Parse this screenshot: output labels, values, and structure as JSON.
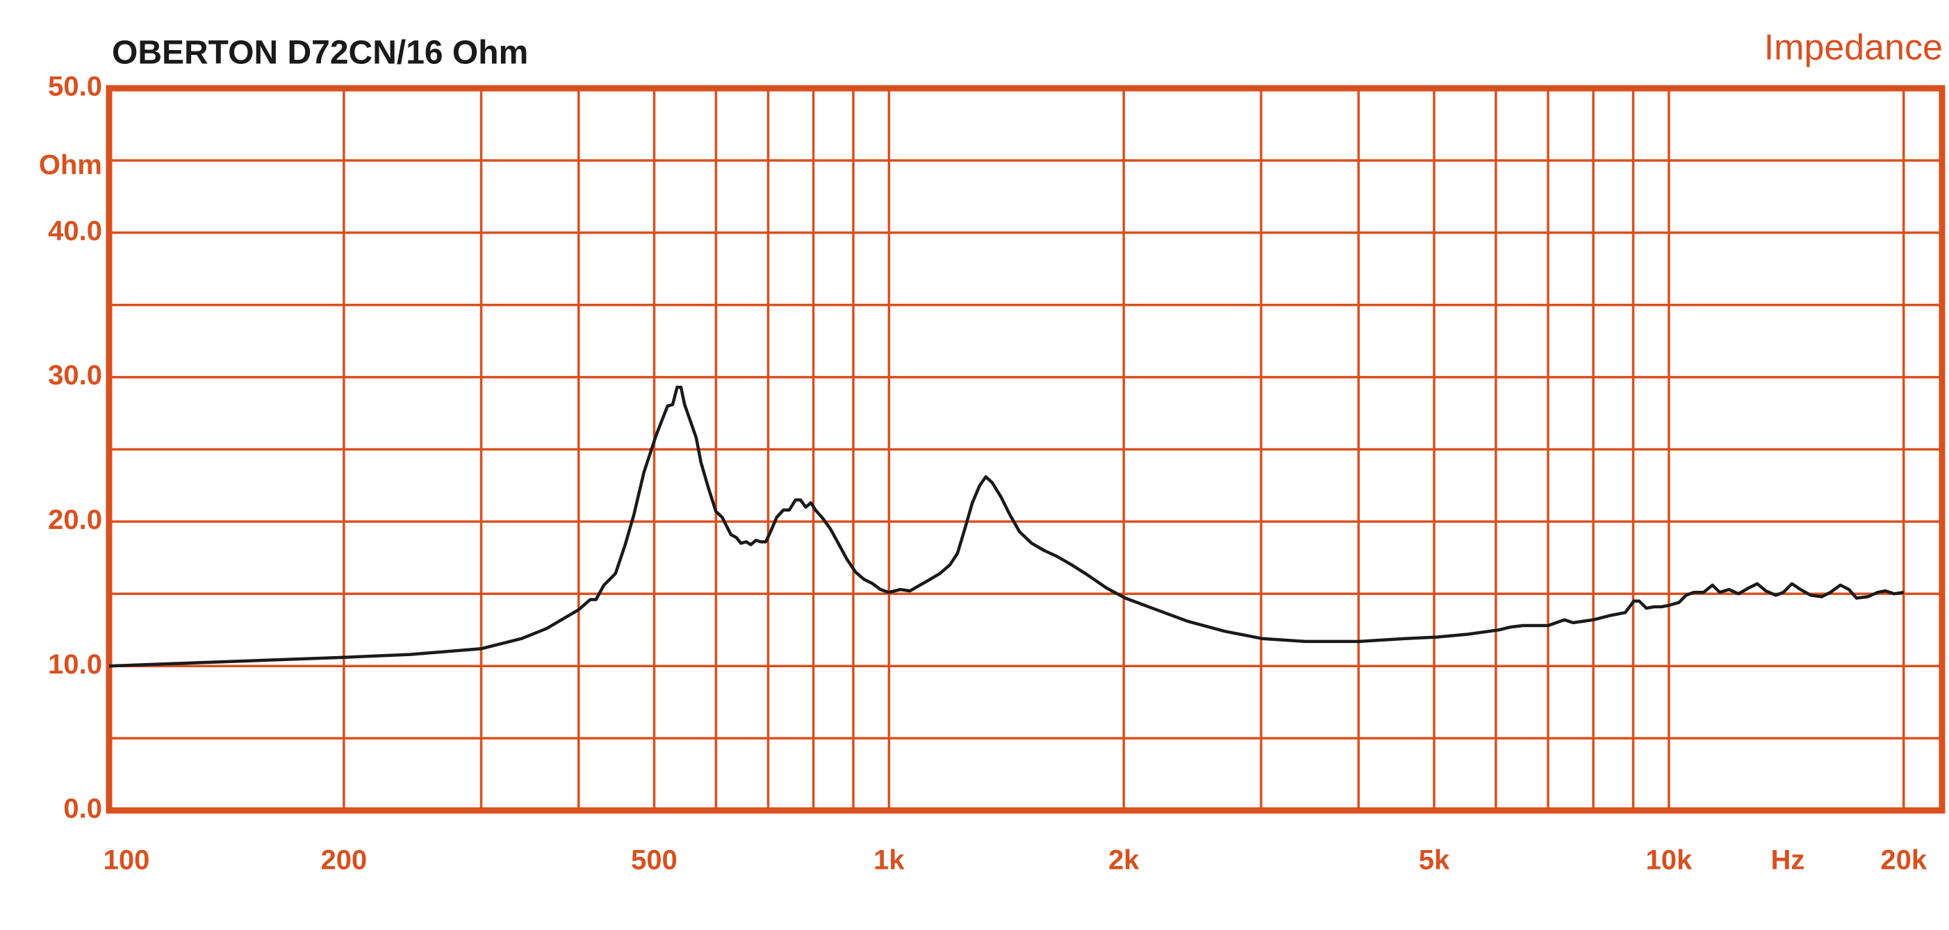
{
  "chart_data": {
    "type": "line",
    "title": "OBERTON  D72CN/16 Ohm",
    "y_unit": "Ohm",
    "x_unit": "Hz",
    "x": [
      100,
      126,
      200,
      243,
      300,
      338,
      364,
      400,
      414,
      421,
      431,
      446,
      459,
      471,
      485,
      503,
      520,
      528,
      535,
      541,
      547,
      556,
      566,
      574,
      587,
      600,
      611,
      627,
      637,
      646,
      656,
      665,
      675,
      685,
      695,
      705,
      718,
      732,
      745,
      759,
      770,
      782,
      794,
      805,
      823,
      841,
      863,
      883,
      906,
      929,
      953,
      975,
      1000,
      1034,
      1064,
      1096,
      1129,
      1162,
      1197,
      1224,
      1251,
      1279,
      1307,
      1331,
      1356,
      1392,
      1428,
      1470,
      1524,
      1581,
      1641,
      1715,
      1798,
      1901,
      2009,
      2203,
      2415,
      2697,
      3008,
      3420,
      4006,
      4590,
      5034,
      5520,
      6050,
      6270,
      6500,
      7000,
      7345,
      7535,
      8000,
      8410,
      8790,
      9020,
      9160,
      9360,
      9570,
      9780,
      10000,
      10300,
      10520,
      10760,
      11080,
      11370,
      11620,
      11940,
      12280,
      12650,
      12980,
      13310,
      13710,
      14020,
      14380,
      14750,
      15200,
      15700,
      16110,
      16590,
      17020,
      17400,
      17990,
      18530,
      18950,
      19440,
      20000
    ],
    "series": [
      {
        "name": "Impedance",
        "color": "#1a1a1a",
        "values": [
          10.0,
          10.2,
          10.6,
          10.8,
          11.2,
          11.9,
          12.6,
          13.9,
          14.6,
          14.6,
          15.6,
          16.4,
          18.4,
          20.5,
          23.4,
          26.0,
          28.0,
          28.1,
          29.3,
          29.3,
          28.1,
          27.0,
          25.8,
          24.1,
          22.3,
          20.7,
          20.3,
          19.1,
          18.9,
          18.5,
          18.6,
          18.4,
          18.7,
          18.6,
          18.6,
          19.3,
          20.3,
          20.8,
          20.8,
          21.5,
          21.5,
          21.0,
          21.3,
          20.8,
          20.2,
          19.5,
          18.4,
          17.4,
          16.5,
          16.0,
          15.7,
          15.3,
          15.1,
          15.3,
          15.2,
          15.6,
          16.0,
          16.4,
          17.0,
          17.8,
          19.5,
          21.3,
          22.5,
          23.1,
          22.7,
          21.7,
          20.5,
          19.3,
          18.5,
          18.0,
          17.6,
          17.0,
          16.3,
          15.4,
          14.7,
          13.9,
          13.1,
          12.4,
          11.9,
          11.7,
          11.7,
          11.9,
          12.0,
          12.2,
          12.5,
          12.7,
          12.8,
          12.8,
          13.2,
          13.0,
          13.2,
          13.5,
          13.7,
          14.5,
          14.5,
          14.0,
          14.1,
          14.1,
          14.2,
          14.4,
          14.9,
          15.1,
          15.1,
          15.6,
          15.1,
          15.3,
          15.0,
          15.4,
          15.7,
          15.2,
          14.9,
          15.1,
          15.7,
          15.3,
          14.9,
          14.8,
          15.1,
          15.6,
          15.3,
          14.7,
          14.8,
          15.1,
          15.2,
          15.0,
          15.1
        ]
      }
    ],
    "xlim": [
      100,
      22400
    ],
    "xlog": true,
    "xticks": [
      {
        "value": 100,
        "label": "100"
      },
      {
        "value": 200,
        "label": "200"
      },
      {
        "value": 500,
        "label": "500"
      },
      {
        "value": 1000,
        "label": "1k"
      },
      {
        "value": 2000,
        "label": "2k"
      },
      {
        "value": 5000,
        "label": "5k"
      },
      {
        "value": 10000,
        "label": "10k"
      },
      {
        "value": 20000,
        "label": "20k"
      }
    ],
    "xgrid": [
      200,
      300,
      400,
      500,
      600,
      700,
      800,
      900,
      1000,
      2000,
      3000,
      4000,
      5000,
      6000,
      7000,
      8000,
      9000,
      10000,
      20000
    ],
    "ylim": [
      0,
      50
    ],
    "yticks": [
      {
        "value": 0,
        "label": "0.0"
      },
      {
        "value": 10,
        "label": "10.0"
      },
      {
        "value": 20,
        "label": "20.0"
      },
      {
        "value": 30,
        "label": "30.0"
      },
      {
        "value": 40,
        "label": "40.0"
      },
      {
        "value": 50,
        "label": "50.0"
      }
    ],
    "ygrid": [
      5,
      10,
      15,
      20,
      25,
      30,
      35,
      40,
      45
    ],
    "grid_color": "#d9501e"
  }
}
